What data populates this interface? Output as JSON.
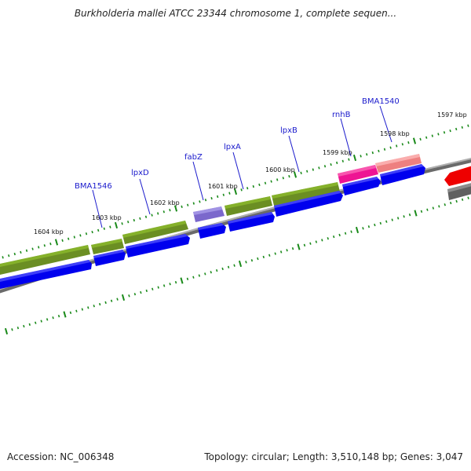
{
  "title": "Burkholderia mallei ATCC 23344 chromosome 1, complete sequen...",
  "footer": {
    "accession": "Accession: NC_006348",
    "topology": "Topology: circular; Length: 3,510,148 bp; Genes: 3,047"
  },
  "kbp_labels": [
    "1604 kbp",
    "1603 kbp",
    "1602 kbp",
    "1601 kbp",
    "1600 kbp",
    "1599 kbp",
    "1598 kbp",
    "1597 kbp"
  ],
  "genes": [
    "BMA1546",
    "lpxD",
    "fabZ",
    "lpxA",
    "lpxB",
    "rnhB",
    "BMA1540"
  ],
  "colors": {
    "cds_olive": "#6b8e23",
    "cds_blue": "#0000ee",
    "fabz_purple": "#7b68cc",
    "rnhb_magenta": "#ee1493",
    "bma1540_salmon": "#ee8080",
    "other_red": "#ee0000",
    "backbone_gray": "#808080",
    "tick_green": "#1a8a1a",
    "label_blue": "#1a1acc"
  }
}
